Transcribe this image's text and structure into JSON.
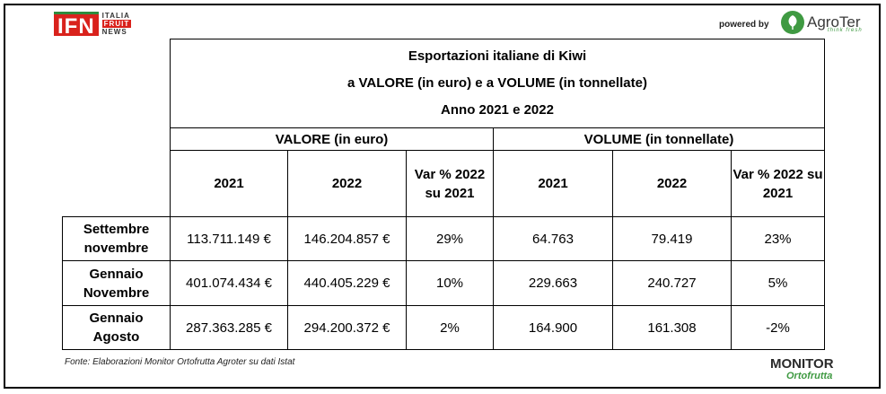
{
  "header": {
    "ifn_logo": {
      "main": "IFN",
      "line1": "ITALIA",
      "line2": "FRUIT",
      "line3": "NEWS"
    },
    "powered_by": "powered by",
    "agroter": {
      "name": "AgroTer",
      "tagline": "think fresh"
    }
  },
  "table": {
    "title_lines": [
      "Esportazioni italiane di Kiwi",
      "a VALORE (in euro) e a VOLUME (in tonnellate)",
      "Anno 2021 e 2022"
    ],
    "groups": [
      "VALORE (in euro)",
      "VOLUME (in tonnellate)"
    ],
    "columns": [
      "2021",
      "2022",
      "Var % 2022 su 2021",
      "2021",
      "2022",
      "Var % 2022 su 2021"
    ],
    "rows": [
      {
        "label": [
          "Settembre",
          "novembre"
        ],
        "values": [
          "113.711.149 €",
          "146.204.857 €",
          "29%",
          "64.763",
          "79.419",
          "23%"
        ]
      },
      {
        "label": [
          "Gennaio",
          "Novembre"
        ],
        "values": [
          "401.074.434 €",
          "440.405.229 €",
          "10%",
          "229.663",
          "240.727",
          "5%"
        ]
      },
      {
        "label": [
          "Gennaio",
          "Agosto"
        ],
        "values": [
          "287.363.285 €",
          "294.200.372 €",
          "2%",
          "164.900",
          "161.308",
          "-2%"
        ]
      }
    ]
  },
  "source": "Fonte: Elaborazioni Monitor Ortofrutta Agroter su dati Istat",
  "monitor_logo": {
    "line1": "MONITOR",
    "line2": "Ortofrutta"
  },
  "colors": {
    "brand_red": "#d9221c",
    "brand_green": "#3f9a42"
  }
}
